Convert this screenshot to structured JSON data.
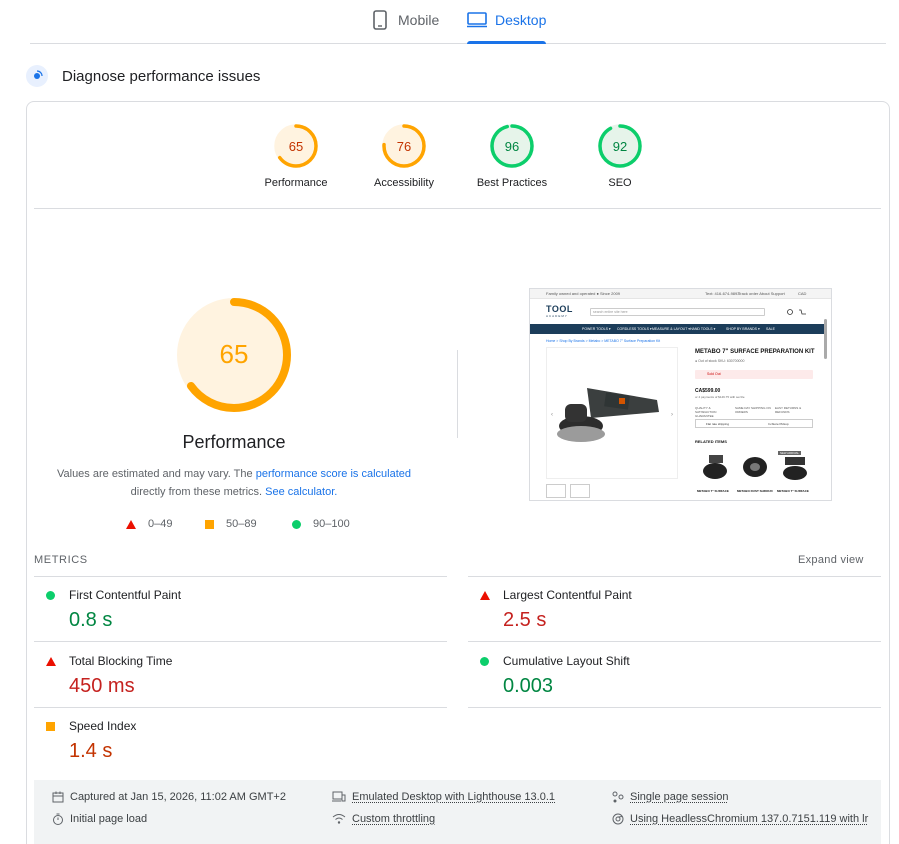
{
  "tabs": [
    {
      "label": "Mobile",
      "active": false
    },
    {
      "label": "Desktop",
      "active": true
    }
  ],
  "section": {
    "title": "Diagnose performance issues"
  },
  "categories": [
    {
      "label": "Performance",
      "score": 65,
      "color": "#ffa400",
      "text_color": "#c33300",
      "fill": "#fff3e0"
    },
    {
      "label": "Accessibility",
      "score": 76,
      "color": "#ffa400",
      "text_color": "#c33300",
      "fill": "#fff3e0"
    },
    {
      "label": "Best Practices",
      "score": 96,
      "color": "#0cce6b",
      "text_color": "#018642",
      "fill": "#e6f4ea"
    },
    {
      "label": "SEO",
      "score": 92,
      "color": "#0cce6b",
      "text_color": "#018642",
      "fill": "#e6f4ea"
    }
  ],
  "performance": {
    "score": 65,
    "title": "Performance",
    "desc_prefix": "Values are estimated and may vary. The ",
    "link1": "performance score is calculated",
    "desc_middle": " directly from these metrics. ",
    "link2": "See calculator.",
    "legend": {
      "poor": "0–49",
      "average": "50–89",
      "good": "90–100"
    }
  },
  "screenshot": {
    "topbar_left": "Family owned and operated ● Since 2009",
    "topbar_phone": "Text: 416-674-9893",
    "topbar_links": "Track order    About    Support",
    "topbar_currency": "CAD",
    "logo": "TOOL",
    "logo_sub": "ACADEMY",
    "search_placeholder": "search entire site here",
    "nav": [
      "POWER TOOLS ▾",
      "CORDLESS TOOLS ▾",
      "MEASURE & LAYOUT ▾",
      "HAND TOOLS ▾",
      "SHOP BY BRANDS ▾",
      "SALE"
    ],
    "breadcrumb": "Home  >  Shop By Brands  >  Metabo  >  METABO 7\" Surface Preparation Kit",
    "product_title": "METABO 7\" SURFACE PREPARATION KIT",
    "product_meta": "● Out of stock    SKU: 630700000",
    "sold_out": "Sold Out",
    "price": "CA$599.00",
    "price_fine": "or 4 payments of $149.75 with sezzle",
    "features": [
      "QUALITY & SATISFACTION GUARANTEE",
      "SAME DAY SHIPPING ON ORDERS",
      "EASY RETURNS & REFUNDS"
    ],
    "shipping": "Flat rate shipping",
    "pickup": "In-Store Pickup",
    "related_title": "RELATED ITEMS",
    "related_labels": [
      "METABO 7\" SURFACE",
      "METABO DUST SHROUD",
      "METABO 7\" SURFACE"
    ],
    "related_badge": "NEW ARRIVAL"
  },
  "metrics": {
    "heading": "METRICS",
    "expand": "Expand view",
    "items": [
      {
        "name": "First Contentful Paint",
        "value": "0.8 s",
        "rating": "good"
      },
      {
        "name": "Largest Contentful Paint",
        "value": "2.5 s",
        "rating": "bad"
      },
      {
        "name": "Total Blocking Time",
        "value": "450 ms",
        "rating": "bad"
      },
      {
        "name": "Cumulative Layout Shift",
        "value": "0.003",
        "rating": "good"
      },
      {
        "name": "Speed Index",
        "value": "1.4 s",
        "rating": "average"
      }
    ]
  },
  "footer": {
    "captured": "Captured at Jan 15, 2026, 11:02 AM GMT+2",
    "load": "Initial page load",
    "emulated": "Emulated Desktop with Lighthouse 13.0.1",
    "throttling": "Custom throttling",
    "session": "Single page session",
    "browser": "Using HeadlessChromium 137.0.7151.119 with lr"
  }
}
